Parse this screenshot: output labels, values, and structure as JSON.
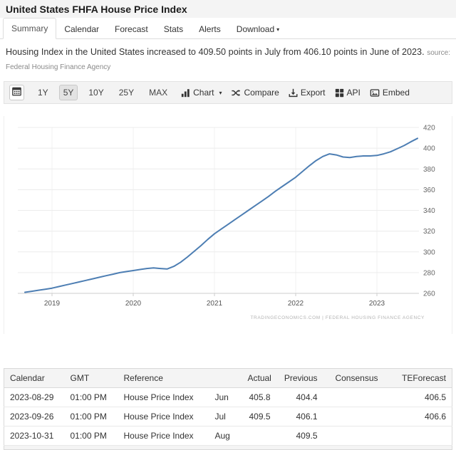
{
  "page": {
    "title": "United States FHFA House Price Index"
  },
  "tabs": [
    {
      "label": "Summary",
      "active": true
    },
    {
      "label": "Calendar",
      "active": false
    },
    {
      "label": "Forecast",
      "active": false
    },
    {
      "label": "Stats",
      "active": false
    },
    {
      "label": "Alerts",
      "active": false
    },
    {
      "label": "Download",
      "active": false,
      "has_caret": true
    }
  ],
  "summary": {
    "text": "Housing Index in the United States increased to 409.50 points in July from 406.10 points in June of 2023.",
    "source_label": "source: Federal Housing Finance Agency"
  },
  "toolbar": {
    "calendar_icon": "calendar-icon",
    "ranges": [
      "1Y",
      "5Y",
      "10Y",
      "25Y",
      "MAX"
    ],
    "active_range": "5Y",
    "buttons": [
      {
        "label": "Chart",
        "icon": "bar-chart-icon",
        "has_caret": true
      },
      {
        "label": "Compare",
        "icon": "shuffle-icon"
      },
      {
        "label": "Export",
        "icon": "download-icon"
      },
      {
        "label": "API",
        "icon": "grid-icon"
      },
      {
        "label": "Embed",
        "icon": "image-icon"
      }
    ]
  },
  "chart_data": {
    "type": "line",
    "title": "United States FHFA House Price Index",
    "grid": true,
    "legend": "none",
    "line_color": "#4d7eb3",
    "axis_label_color": "#666666",
    "watermark": "TRADINGECONOMICS.COM  |  FEDERAL HOUSING FINANCE AGENCY",
    "ylim": [
      260,
      420
    ],
    "y_ticks": [
      420,
      400,
      380,
      360,
      340,
      320,
      300,
      280,
      260
    ],
    "x_tick_labels": [
      "2019",
      "2020",
      "2021",
      "2022",
      "2023"
    ],
    "x_months": [
      "2018-09",
      "2018-10",
      "2018-11",
      "2018-12",
      "2019-01",
      "2019-02",
      "2019-03",
      "2019-04",
      "2019-05",
      "2019-06",
      "2019-07",
      "2019-08",
      "2019-09",
      "2019-10",
      "2019-11",
      "2019-12",
      "2020-01",
      "2020-02",
      "2020-03",
      "2020-04",
      "2020-05",
      "2020-06",
      "2020-07",
      "2020-08",
      "2020-09",
      "2020-10",
      "2020-11",
      "2020-12",
      "2021-01",
      "2021-02",
      "2021-03",
      "2021-04",
      "2021-05",
      "2021-06",
      "2021-07",
      "2021-08",
      "2021-09",
      "2021-10",
      "2021-11",
      "2021-12",
      "2022-01",
      "2022-02",
      "2022-03",
      "2022-04",
      "2022-05",
      "2022-06",
      "2022-07",
      "2022-08",
      "2022-09",
      "2022-10",
      "2022-11",
      "2022-12",
      "2023-01",
      "2023-02",
      "2023-03",
      "2023-04",
      "2023-05",
      "2023-06",
      "2023-07"
    ],
    "series": [
      {
        "name": "House Price Index (points)",
        "values": [
          261,
          262,
          263,
          264,
          265,
          266.5,
          268,
          269.5,
          271,
          272.5,
          274,
          275.5,
          277,
          278.5,
          280,
          281,
          282,
          283,
          284,
          284.5,
          284,
          283.5,
          286,
          290,
          295,
          300.5,
          306,
          312,
          317.5,
          322,
          326.5,
          331,
          335.5,
          340,
          344.5,
          349,
          353.5,
          358.5,
          363,
          367.5,
          372,
          377.5,
          383,
          388,
          392,
          394.5,
          393.5,
          391.5,
          391,
          392,
          392.5,
          392.5,
          393,
          394.5,
          396.5,
          399.5,
          402.5,
          406.1,
          409.5
        ]
      }
    ]
  },
  "table": {
    "headers": [
      "Calendar",
      "GMT",
      "Reference",
      "",
      "Actual",
      "Previous",
      "Consensus",
      "TEForecast"
    ],
    "rows": [
      [
        "2023-08-29",
        "01:00 PM",
        "House Price Index",
        "Jun",
        "405.8",
        "404.4",
        "",
        "406.5"
      ],
      [
        "2023-09-26",
        "01:00 PM",
        "House Price Index",
        "Jul",
        "409.5",
        "406.1",
        "",
        "406.6"
      ],
      [
        "2023-10-31",
        "01:00 PM",
        "House Price Index",
        "Aug",
        "",
        "409.5",
        "",
        ""
      ]
    ]
  }
}
